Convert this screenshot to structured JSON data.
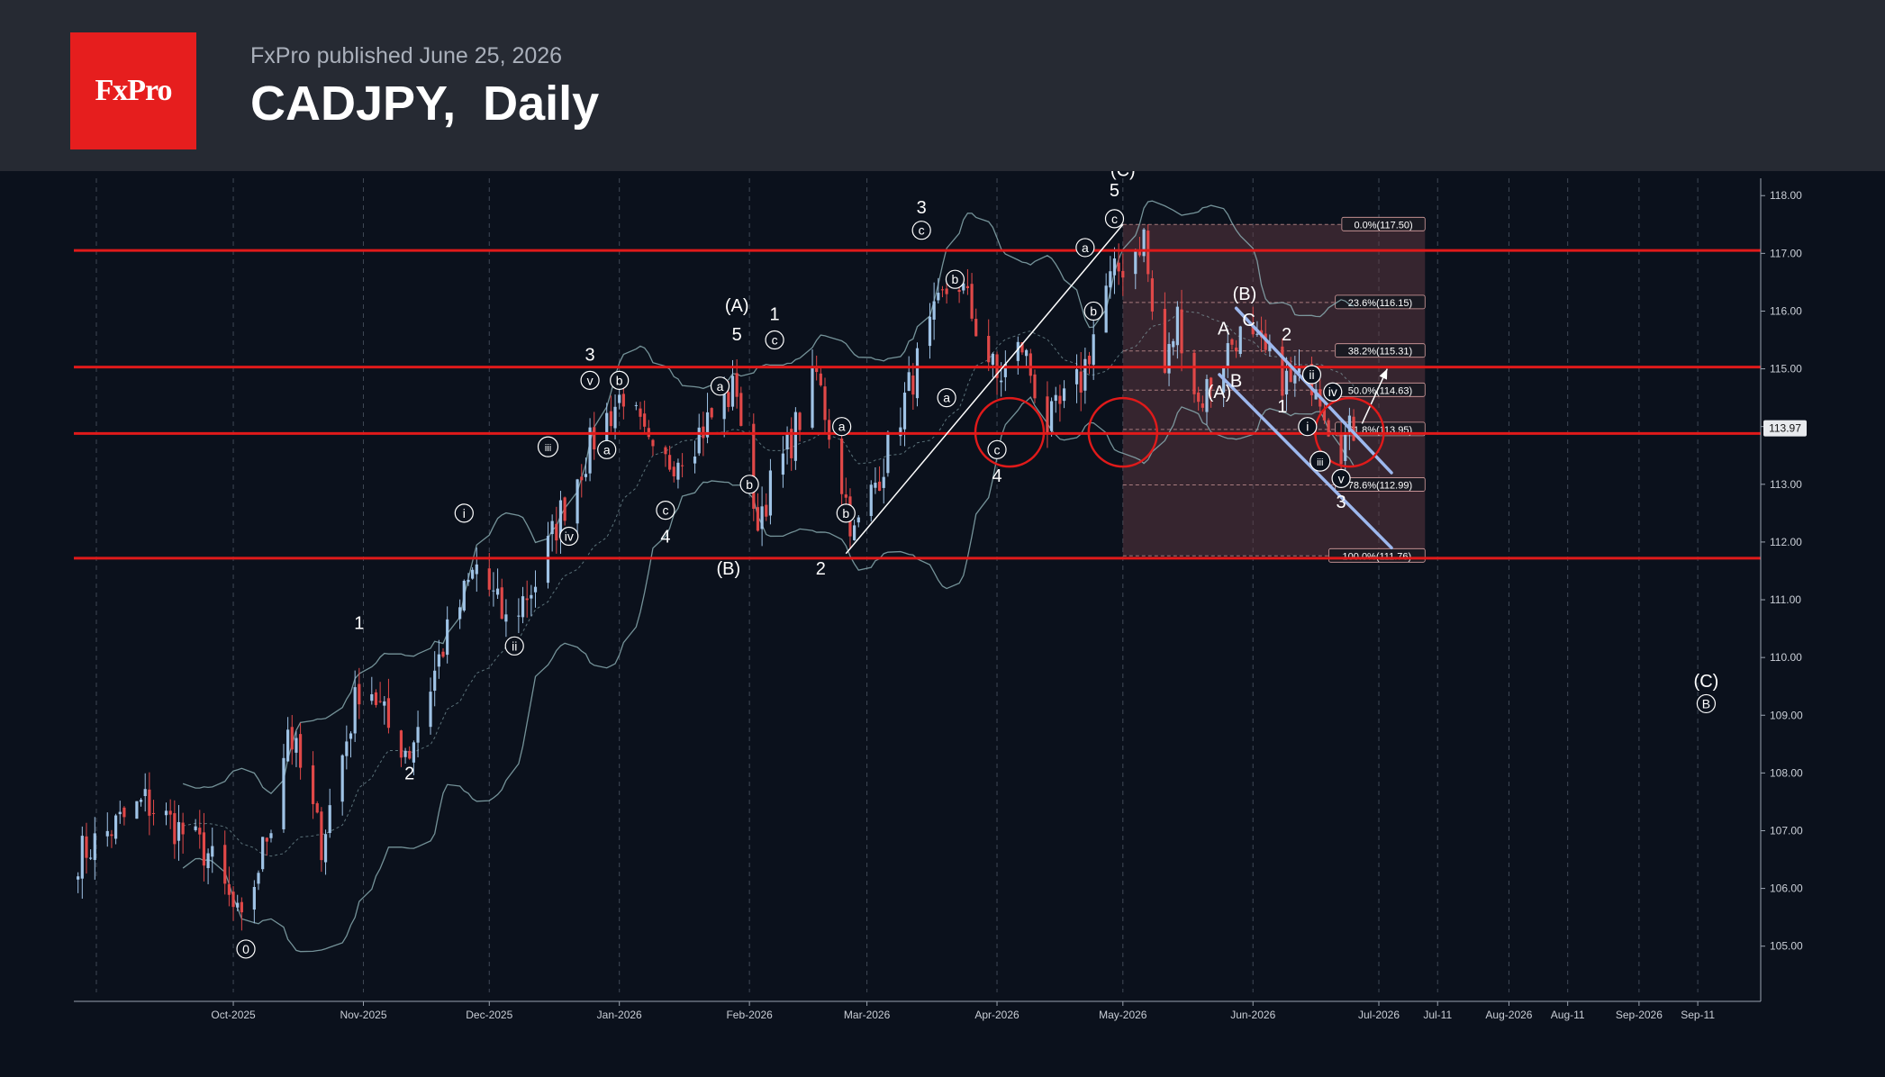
{
  "header": {
    "brand": "FxPro",
    "published": "FxPro published June 25, 2026",
    "title": "CADJPY,  Daily"
  },
  "colors": {
    "background": "#0b111c",
    "header": "#262a33",
    "brand_red": "#e61e1e",
    "level_line": "#e01a1a",
    "up_candle": "#9fc3e6",
    "down_candle": "#e04848",
    "channel": "#9db8ee",
    "fib_zone": "#6b3f48"
  },
  "chart_data": {
    "type": "candlestick",
    "symbol": "CADJPY",
    "timeframe": "Daily",
    "ylim": [
      104.2,
      118.3
    ],
    "y_ticks": [
      105.0,
      106.0,
      107.0,
      108.0,
      109.0,
      110.0,
      111.0,
      112.0,
      113.0,
      114.0,
      115.0,
      116.0,
      117.0,
      118.0
    ],
    "x_range": [
      "2025-08-24",
      "2026-09-30"
    ],
    "x_ticks": [
      {
        "date": "2025-10-01",
        "label": "Oct-2025"
      },
      {
        "date": "2025-11-01",
        "label": "Nov-2025"
      },
      {
        "date": "2025-12-01",
        "label": "Dec-2025"
      },
      {
        "date": "2026-01-01",
        "label": "Jan-2026"
      },
      {
        "date": "2026-02-01",
        "label": "Feb-2026"
      },
      {
        "date": "2026-03-01",
        "label": "Mar-2026"
      },
      {
        "date": "2026-04-01",
        "label": "Apr-2026"
      },
      {
        "date": "2026-05-01",
        "label": "May-2026"
      },
      {
        "date": "2026-06-01",
        "label": "Jun-2026"
      },
      {
        "date": "2026-07-01",
        "label": "Jul-2026"
      },
      {
        "date": "2026-07-15",
        "label": "Jul-11"
      },
      {
        "date": "2026-08-01",
        "label": "Aug-2026"
      },
      {
        "date": "2026-08-15",
        "label": "Aug-11"
      },
      {
        "date": "2026-09-01",
        "label": "Sep-2026"
      },
      {
        "date": "2026-09-15",
        "label": "Sep-11"
      }
    ],
    "current_price": "113.97",
    "levels": [
      117.05,
      115.03,
      113.88,
      111.72
    ],
    "price_path": [
      [
        "2025-08-24",
        106.5
      ],
      [
        "2025-09-10",
        107.5
      ],
      [
        "2025-09-25",
        106.6
      ],
      [
        "2025-10-03",
        105.3
      ],
      [
        "2025-10-10",
        107.2
      ],
      [
        "2025-10-14",
        108.8
      ],
      [
        "2025-10-22",
        106.8
      ],
      [
        "2025-11-01",
        109.8
      ],
      [
        "2025-11-08",
        108.6
      ],
      [
        "2025-11-12",
        108.4
      ],
      [
        "2025-11-20",
        110.2
      ],
      [
        "2025-11-28",
        111.6
      ],
      [
        "2025-12-05",
        110.6
      ],
      [
        "2025-12-12",
        111.3
      ],
      [
        "2025-12-18",
        112.5
      ],
      [
        "2025-12-26",
        113.8
      ],
      [
        "2026-01-02",
        114.6
      ],
      [
        "2026-01-10",
        113.2
      ],
      [
        "2026-01-20",
        113.9
      ],
      [
        "2026-01-29",
        114.7
      ],
      [
        "2026-02-02",
        112.3
      ],
      [
        "2026-02-10",
        113.6
      ],
      [
        "2026-02-17",
        114.9
      ],
      [
        "2026-02-26",
        112.1
      ],
      [
        "2026-03-05",
        113.4
      ],
      [
        "2026-03-14",
        115.3
      ],
      [
        "2026-03-22",
        116.7
      ],
      [
        "2026-04-01",
        114.8
      ],
      [
        "2026-04-07",
        115.4
      ],
      [
        "2026-04-13",
        114.0
      ],
      [
        "2026-04-21",
        114.8
      ],
      [
        "2026-04-27",
        116.4
      ],
      [
        "2026-05-06",
        117.3
      ],
      [
        "2026-05-10",
        114.6
      ],
      [
        "2026-05-14",
        115.9
      ],
      [
        "2026-05-19",
        114.4
      ],
      [
        "2026-05-28",
        115.6
      ],
      [
        "2026-06-04",
        115.2
      ],
      [
        "2026-06-10",
        114.7
      ],
      [
        "2026-06-16",
        114.9
      ],
      [
        "2026-06-21",
        113.6
      ],
      [
        "2026-06-25",
        113.97
      ]
    ],
    "fib_retracement": {
      "start": "2026-05-01",
      "end": "2026-07-12",
      "levels": [
        {
          "price": 117.5,
          "label": "0.0%(117.50)"
        },
        {
          "price": 116.15,
          "label": "23.6%(116.15)"
        },
        {
          "price": 115.31,
          "label": "38.2%(115.31)"
        },
        {
          "price": 114.63,
          "label": "50.0%(114.63)"
        },
        {
          "price": 113.95,
          "label": "61.8%(113.95)"
        },
        {
          "price": 112.99,
          "label": "78.6%(112.99)"
        },
        {
          "price": 111.76,
          "label": "100.0%(111.76)"
        }
      ]
    },
    "trendlines": [
      {
        "x1": "2026-02-24",
        "y1": 111.8,
        "x2": "2026-05-01",
        "y2": 117.5,
        "color": "#ffffff"
      }
    ],
    "channel": [
      {
        "x1": "2026-05-28",
        "y1": 116.05,
        "x2": "2026-07-04",
        "y2": 113.2
      },
      {
        "x1": "2026-05-24",
        "y1": 114.9,
        "x2": "2026-07-04",
        "y2": 111.9
      }
    ],
    "arrow": {
      "x1": "2026-06-27",
      "y1": 114.05,
      "x2": "2026-07-03",
      "y2": 115.0
    },
    "circles": [
      {
        "date": "2026-04-04",
        "price": 113.9
      },
      {
        "date": "2026-05-01",
        "price": 113.9
      },
      {
        "date": "2026-06-24",
        "price": 113.9
      }
    ],
    "wave_labels": [
      {
        "date": "2025-10-04",
        "price": 104.95,
        "text": "0",
        "circled": true
      },
      {
        "date": "2025-10-31",
        "price": 110.6,
        "text": "1",
        "circled": false
      },
      {
        "date": "2025-11-12",
        "price": 108.0,
        "text": "2",
        "circled": false
      },
      {
        "date": "2025-11-25",
        "price": 112.5,
        "text": "i",
        "circled": true
      },
      {
        "date": "2025-12-07",
        "price": 110.2,
        "text": "ii",
        "circled": true
      },
      {
        "date": "2025-12-15",
        "price": 113.65,
        "text": "iii",
        "circled": true
      },
      {
        "date": "2025-12-20",
        "price": 112.1,
        "text": "iv",
        "circled": true
      },
      {
        "date": "2025-12-25",
        "price": 114.8,
        "text": "v",
        "circled": true
      },
      {
        "date": "2025-12-25",
        "price": 115.25,
        "text": "3",
        "circled": false
      },
      {
        "date": "2026-01-01",
        "price": 114.8,
        "text": "b",
        "circled": true
      },
      {
        "date": "2025-12-29",
        "price": 113.6,
        "text": "a",
        "circled": true
      },
      {
        "date": "2026-01-12",
        "price": 112.55,
        "text": "c",
        "circled": true
      },
      {
        "date": "2026-01-12",
        "price": 112.1,
        "text": "4",
        "circled": false
      },
      {
        "date": "2026-01-29",
        "price": 116.1,
        "text": "(A)",
        "circled": false
      },
      {
        "date": "2026-01-29",
        "price": 115.6,
        "text": "5",
        "circled": false
      },
      {
        "date": "2026-01-27",
        "price": 111.55,
        "text": "(B)",
        "circled": false
      },
      {
        "date": "2026-01-25",
        "price": 114.7,
        "text": "a",
        "circled": true
      },
      {
        "date": "2026-02-01",
        "price": 113.0,
        "text": "b",
        "circled": true
      },
      {
        "date": "2026-02-07",
        "price": 115.5,
        "text": "c",
        "circled": true
      },
      {
        "date": "2026-02-07",
        "price": 115.95,
        "text": "1",
        "circled": false
      },
      {
        "date": "2026-02-18",
        "price": 111.55,
        "text": "2",
        "circled": false
      },
      {
        "date": "2026-02-23",
        "price": 114.0,
        "text": "a",
        "circled": true
      },
      {
        "date": "2026-02-24",
        "price": 112.5,
        "text": "b",
        "circled": true
      },
      {
        "date": "2026-03-14",
        "price": 117.4,
        "text": "c",
        "circled": true
      },
      {
        "date": "2026-03-14",
        "price": 117.8,
        "text": "3",
        "circled": false
      },
      {
        "date": "2026-03-22",
        "price": 116.55,
        "text": "b",
        "circled": true
      },
      {
        "date": "2026-03-20",
        "price": 114.5,
        "text": "a",
        "circled": true
      },
      {
        "date": "2026-04-01",
        "price": 113.6,
        "text": "c",
        "circled": true
      },
      {
        "date": "2026-04-01",
        "price": 113.15,
        "text": "4",
        "circled": false
      },
      {
        "date": "2026-04-22",
        "price": 117.1,
        "text": "a",
        "circled": true
      },
      {
        "date": "2026-04-24",
        "price": 116.0,
        "text": "b",
        "circled": true
      },
      {
        "date": "2026-04-29",
        "price": 117.6,
        "text": "c",
        "circled": true
      },
      {
        "date": "2026-04-29",
        "price": 118.1,
        "text": "5",
        "circled": false
      },
      {
        "date": "2026-05-30",
        "price": 116.3,
        "text": "(B)",
        "circled": false
      },
      {
        "date": "2026-05-25",
        "price": 115.7,
        "text": "A",
        "circled": false
      },
      {
        "date": "2026-05-31",
        "price": 115.85,
        "text": "C",
        "circled": false
      },
      {
        "date": "2026-05-24",
        "price": 114.6,
        "text": "(A)",
        "circled": false
      },
      {
        "date": "2026-05-28",
        "price": 114.8,
        "text": "B",
        "circled": false
      },
      {
        "date": "2026-06-09",
        "price": 115.6,
        "text": "2",
        "circled": false
      },
      {
        "date": "2026-06-08",
        "price": 114.35,
        "text": "1",
        "circled": false
      },
      {
        "date": "2026-06-15",
        "price": 114.9,
        "text": "ii",
        "circled": true
      },
      {
        "date": "2026-06-20",
        "price": 114.6,
        "text": "iv",
        "circled": true
      },
      {
        "date": "2026-06-14",
        "price": 114.0,
        "text": "i",
        "circled": true
      },
      {
        "date": "2026-06-17",
        "price": 113.4,
        "text": "iii",
        "circled": true
      },
      {
        "date": "2026-06-22",
        "price": 113.1,
        "text": "v",
        "circled": true
      },
      {
        "date": "2026-06-22",
        "price": 112.7,
        "text": "3",
        "circled": false
      },
      {
        "date": "2026-09-17",
        "price": 109.6,
        "text": "(C)",
        "circled": false
      },
      {
        "date": "2026-09-17",
        "price": 109.2,
        "text": "B",
        "circled": true
      },
      {
        "date": "2026-05-01",
        "price": 118.45,
        "text": "(C)",
        "circled": false
      }
    ]
  }
}
